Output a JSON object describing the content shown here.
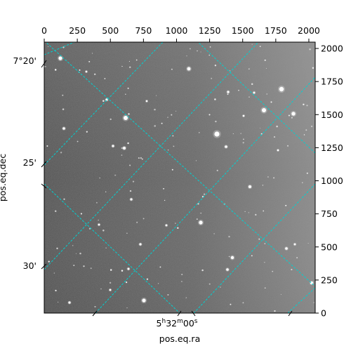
{
  "image": {
    "kind": "astronomical-image",
    "colormap": "gray",
    "grid_color": "#00d2d2",
    "pixel_range": [
      0,
      2048
    ]
  },
  "axes": {
    "top_x_ticks": [
      "0",
      "250",
      "500",
      "750",
      "1000",
      "1250",
      "1500",
      "1750",
      "2000"
    ],
    "right_y_ticks": [
      "0",
      "250",
      "500",
      "750",
      "1000",
      "1250",
      "1500",
      "1750",
      "2000"
    ],
    "dec_ticks": [
      "7°20'",
      "25'",
      "30'"
    ],
    "ra_ticks": [
      "5h32m00s"
    ],
    "ra_tick_parts": {
      "hours": "5",
      "h": "h",
      "minutes": "32",
      "m": "m",
      "seconds": "00",
      "s": "s"
    },
    "xlabel": "pos.eq.ra",
    "ylabel": "pos.eq.dec"
  }
}
